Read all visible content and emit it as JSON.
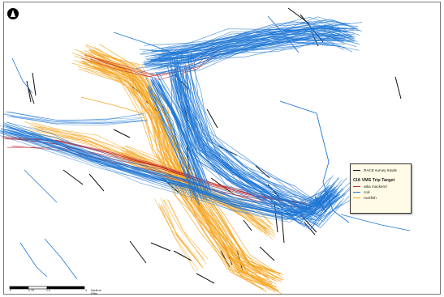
{
  "map": {
    "colors": {
      "survey": "#111111",
      "mackerel": "#c0282d",
      "cod": "#1f77d4",
      "rockfish": "#f5a623"
    }
  },
  "north_arrow": {
    "icon": "north-arrow-icon"
  },
  "legend": {
    "survey_label": "RACE survey trawls",
    "title": "CIA VMS Trip Target",
    "items": [
      {
        "label": "atka mackerel",
        "color": "#c0282d"
      },
      {
        "label": "cod",
        "color": "#1f77d4"
      },
      {
        "label": "rockfish",
        "color": "#f5a623"
      }
    ]
  },
  "scale_bar": {
    "ticks": [
      "0",
      "0.75",
      "1.5",
      "3"
    ],
    "unit": "Nautical Miles"
  }
}
